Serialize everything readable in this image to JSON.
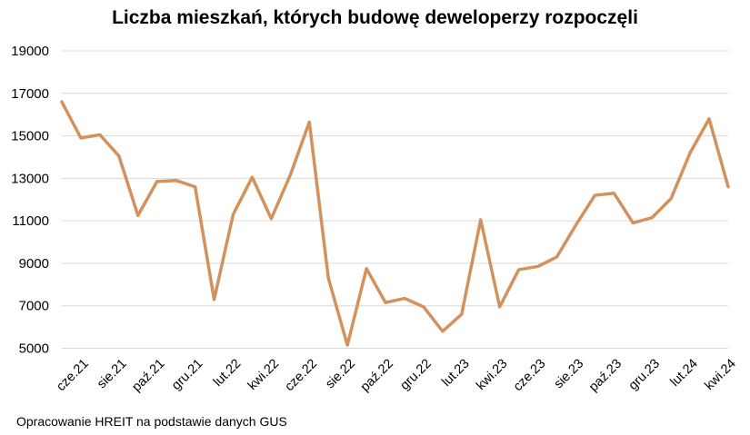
{
  "chart_data": {
    "type": "line",
    "title": "Liczba mieszkań, których budowę deweloperzy rozpoczęli",
    "source": "Opracowanie HREIT na podstawie danych GUS",
    "xlabel": "",
    "ylabel": "",
    "ylim": [
      4500,
      19000
    ],
    "yticks": [
      5000,
      7000,
      9000,
      11000,
      13000,
      15000,
      17000,
      19000
    ],
    "grid": true,
    "legend": "none",
    "line_color": "#D3915E",
    "x": [
      "maj.21",
      "cze.21",
      "lip.21",
      "sie.21",
      "wrz.21",
      "paź.21",
      "lis.21",
      "gru.21",
      "sty.22",
      "lut.22",
      "mar.22",
      "kwi.22",
      "maj.22",
      "cze.22",
      "lip.22",
      "sie.22",
      "wrz.22",
      "paź.22",
      "lis.22",
      "gru.22",
      "sty.23",
      "lut.23",
      "mar.23",
      "kwi.23",
      "maj.23",
      "cze.23",
      "lip.23",
      "sie.23",
      "wrz.23",
      "paź.23",
      "lis.23",
      "gru.23",
      "sty.24",
      "lut.24",
      "mar.24",
      "kwi.24"
    ],
    "x_tick_labels": [
      "cze.21",
      "sie.21",
      "paź.21",
      "gru.21",
      "lut.22",
      "kwi.22",
      "cze.22",
      "sie.22",
      "paź.22",
      "gru.22",
      "lut.23",
      "kwi.23",
      "cze.23",
      "sie.23",
      "paź.23",
      "gru.23",
      "lut.24",
      "kwi.24"
    ],
    "series": [
      {
        "values": [
          16600,
          14900,
          15050,
          14050,
          11250,
          12850,
          12900,
          12600,
          7300,
          11300,
          13050,
          11100,
          13150,
          15650,
          8300,
          5150,
          8750,
          7150,
          7350,
          6950,
          5800,
          6600,
          11050,
          6950,
          8700,
          8850,
          9300,
          10800,
          12200,
          12300,
          10900,
          11150,
          12050,
          14200,
          15800,
          12600
        ]
      }
    ]
  }
}
